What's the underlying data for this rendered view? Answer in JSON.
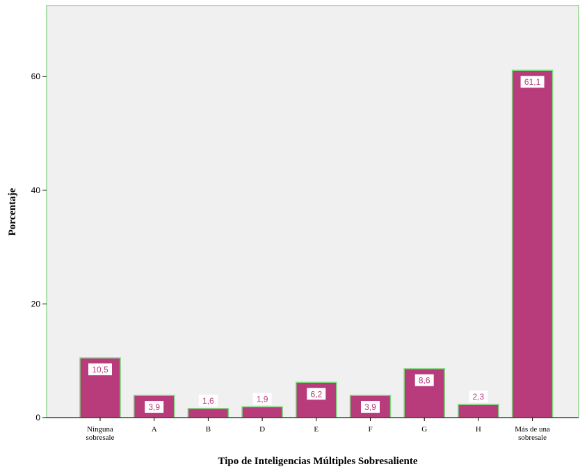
{
  "chart_data": {
    "type": "bar",
    "categories": [
      [
        "Ninguna",
        "sobresale"
      ],
      [
        "A"
      ],
      [
        "B"
      ],
      [
        "D"
      ],
      [
        "E"
      ],
      [
        "F"
      ],
      [
        "G"
      ],
      [
        "H"
      ],
      [
        "Más de una",
        "sobresale"
      ]
    ],
    "values": [
      10.5,
      3.9,
      1.6,
      1.9,
      6.2,
      3.9,
      8.6,
      2.3,
      61.1
    ],
    "value_labels": [
      "10,5",
      "3,9",
      "1,6",
      "1,9",
      "6,2",
      "3,9",
      "8,6",
      "2,3",
      "61,1"
    ],
    "xlabel": "Tipo de Inteligencias Múltiples Sobresaliente",
    "ylabel": "Porcentaje",
    "ylim": [
      0,
      72.5
    ],
    "yticks": [
      0,
      20,
      40,
      60
    ],
    "grid": false,
    "colors": {
      "bar_fill": "#b83b7b",
      "bar_stroke": "#7ed67e",
      "plot_bg": "#f0f0f0",
      "plot_border": "#90d890",
      "label_text": "#b83b7b",
      "label_bg": "#ffffff"
    }
  }
}
